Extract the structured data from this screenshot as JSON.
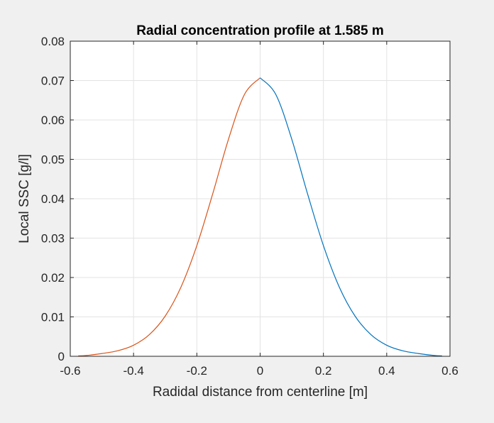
{
  "chart_data": {
    "type": "line",
    "title": "Radial concentration profile at 1.585 m",
    "xlabel": "Radidal distance from centerline [m]",
    "ylabel": "Local SSC [g/l]",
    "xlim": [
      -0.6,
      0.6
    ],
    "ylim": [
      0,
      0.08
    ],
    "xticks": [
      -0.6,
      -0.4,
      -0.2,
      0,
      0.2,
      0.4,
      0.6
    ],
    "xtick_labels": [
      "-0.6",
      "-0.4",
      "-0.2",
      "0",
      "0.2",
      "0.4",
      "0.6"
    ],
    "yticks": [
      0,
      0.01,
      0.02,
      0.03,
      0.04,
      0.05,
      0.06,
      0.07,
      0.08
    ],
    "ytick_labels": [
      "0",
      "0.01",
      "0.02",
      "0.03",
      "0.04",
      "0.05",
      "0.06",
      "0.07",
      "0.08"
    ],
    "grid": true,
    "series": [
      {
        "color": "#D95319",
        "x": [
          -0.575,
          -0.55,
          -0.5,
          -0.45,
          -0.4,
          -0.35,
          -0.3,
          -0.25,
          -0.2,
          -0.15,
          -0.1,
          -0.05,
          0
        ],
        "y": [
          0.0001,
          0.0002,
          0.0007,
          0.0014,
          0.0028,
          0.0055,
          0.0102,
          0.0176,
          0.0281,
          0.0412,
          0.0551,
          0.0664,
          0.0707
        ]
      },
      {
        "color": "#0072BD",
        "x": [
          0,
          0.05,
          0.1,
          0.15,
          0.2,
          0.25,
          0.3,
          0.35,
          0.4,
          0.45,
          0.5,
          0.55,
          0.575
        ],
        "y": [
          0.0707,
          0.0664,
          0.0551,
          0.0412,
          0.0281,
          0.0176,
          0.0102,
          0.0055,
          0.0028,
          0.0014,
          0.0007,
          0.0002,
          0.0001
        ]
      }
    ]
  }
}
